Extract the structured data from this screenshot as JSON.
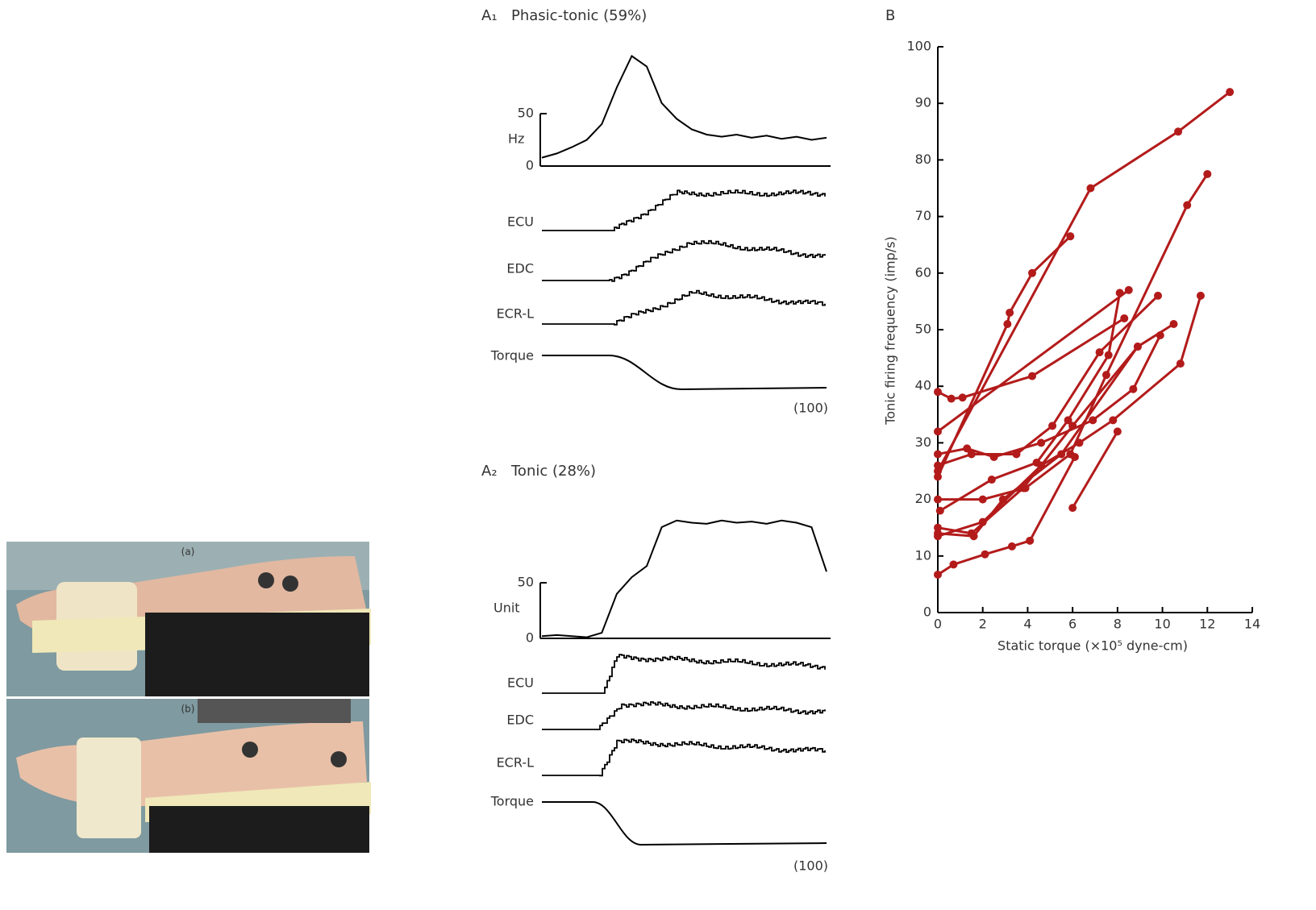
{
  "photos": [
    {
      "label": "(a)"
    },
    {
      "label": "(b)"
    }
  ],
  "panels": [
    {
      "label": "A₁",
      "title": "Phasic-tonic (59%)",
      "rate_label": "Hz",
      "rate_ylim": [
        0,
        50
      ],
      "rate_yticks": [
        0,
        50
      ],
      "rate_values": [
        8,
        12,
        18,
        25,
        40,
        75,
        105,
        95,
        60,
        45,
        35,
        30,
        28,
        30,
        27,
        29,
        26,
        28,
        25,
        27
      ],
      "traces": [
        "ECU",
        "EDC",
        "ECR-L",
        "Torque"
      ],
      "footnote": "(100)"
    },
    {
      "label": "A₂",
      "title": "Tonic (28%)",
      "rate_label": "Unit",
      "rate_ylim": [
        0,
        50
      ],
      "rate_yticks": [
        0,
        50
      ],
      "rate_values": [
        2,
        3,
        2,
        1,
        5,
        40,
        55,
        65,
        100,
        106,
        104,
        103,
        106,
        104,
        105,
        103,
        106,
        104,
        100,
        60
      ],
      "traces": [
        "ECU",
        "EDC",
        "ECR-L",
        "Torque"
      ],
      "footnote": "(100)"
    }
  ],
  "chart_data": {
    "type": "line",
    "label": "B",
    "x_label": "Static torque (×10⁵ dyne-cm)",
    "y_label": "Tonic firing frequency (imp/s)",
    "xlim": [
      0,
      14
    ],
    "ylim": [
      0,
      100
    ],
    "xticks": [
      0,
      2,
      4,
      6,
      8,
      10,
      12,
      14
    ],
    "yticks": [
      0,
      10,
      20,
      30,
      40,
      50,
      60,
      70,
      80,
      90,
      100
    ],
    "color": "#b31b1b",
    "series": [
      {
        "x": [
          0,
          6.8,
          10.7,
          13
        ],
        "values": [
          25,
          75,
          85,
          92
        ]
      },
      {
        "x": [
          0,
          3.1,
          3.2,
          4.2,
          5.9
        ],
        "values": [
          24,
          51,
          53,
          60,
          66.5
        ]
      },
      {
        "x": [
          6,
          8
        ],
        "values": [
          18.5,
          32
        ]
      },
      {
        "x": [
          0,
          0.6,
          1.1,
          4.2,
          8.3
        ],
        "values": [
          39,
          37.8,
          38,
          41.8,
          52
        ]
      },
      {
        "x": [
          0,
          8.5
        ],
        "values": [
          32,
          57
        ]
      },
      {
        "x": [
          0,
          1.3,
          2.5,
          4.6,
          6.9,
          8.7,
          9.9
        ],
        "values": [
          28,
          29,
          27.5,
          30,
          34,
          39.5,
          49
        ]
      },
      {
        "x": [
          0,
          1.5,
          3.5,
          5.1,
          7.2,
          9.8
        ],
        "values": [
          26,
          28,
          28,
          33,
          46,
          56
        ]
      },
      {
        "x": [
          0,
          2,
          3.9,
          5.9,
          7.5,
          11.1,
          12
        ],
        "values": [
          20,
          20,
          22,
          28,
          42,
          72,
          77.5
        ]
      },
      {
        "x": [
          0,
          1.5,
          3.8,
          6,
          8.9,
          10.5
        ],
        "values": [
          15,
          14,
          22,
          33,
          47,
          51
        ]
      },
      {
        "x": [
          0,
          2,
          4.6,
          6.3,
          7.8,
          10.8,
          11.7
        ],
        "values": [
          13.5,
          16,
          26,
          30,
          34,
          44,
          56
        ]
      },
      {
        "x": [
          0,
          0.7,
          2.1,
          3.3,
          4.1,
          6.1
        ],
        "values": [
          6.7,
          8.5,
          10.3,
          11.7,
          12.7,
          27.5
        ]
      },
      {
        "x": [
          0,
          1.6,
          2.9,
          5.5,
          8.9
        ],
        "values": [
          14,
          13.5,
          20,
          28,
          47
        ]
      },
      {
        "x": [
          0.1,
          2.4,
          4.4,
          5.8,
          7.6,
          8.1
        ],
        "values": [
          18,
          23.5,
          26.5,
          34,
          45.5,
          56.5
        ]
      }
    ]
  }
}
